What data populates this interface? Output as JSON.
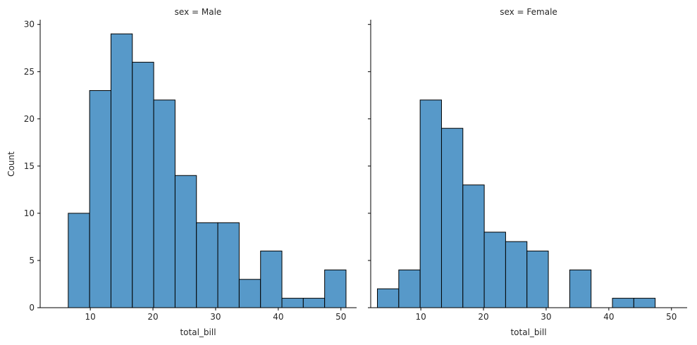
{
  "chart_data": [
    {
      "type": "bar",
      "subtype": "histogram",
      "title": "sex = Male",
      "xlabel": "total_bill",
      "ylabel": "Count",
      "xlim": [
        2.0,
        52.5
      ],
      "ylim": [
        0,
        30.5
      ],
      "xticks": [
        10,
        20,
        30,
        40,
        50
      ],
      "yticks": [
        0,
        5,
        10,
        15,
        20,
        25,
        30
      ],
      "bar_color": "#5799c9",
      "edge_color": "#000000",
      "bins": [
        {
          "x0": 3.07,
          "x1": 6.48,
          "count": 0
        },
        {
          "x0": 6.48,
          "x1": 9.89,
          "count": 10
        },
        {
          "x0": 9.89,
          "x1": 13.3,
          "count": 23
        },
        {
          "x0": 13.3,
          "x1": 16.71,
          "count": 29
        },
        {
          "x0": 16.71,
          "x1": 20.12,
          "count": 26
        },
        {
          "x0": 20.12,
          "x1": 23.53,
          "count": 22
        },
        {
          "x0": 23.53,
          "x1": 26.94,
          "count": 14
        },
        {
          "x0": 26.94,
          "x1": 30.35,
          "count": 9
        },
        {
          "x0": 30.35,
          "x1": 33.76,
          "count": 9
        },
        {
          "x0": 33.76,
          "x1": 37.17,
          "count": 3
        },
        {
          "x0": 37.17,
          "x1": 40.58,
          "count": 6
        },
        {
          "x0": 40.58,
          "x1": 43.99,
          "count": 1
        },
        {
          "x0": 43.99,
          "x1": 47.4,
          "count": 1
        },
        {
          "x0": 47.4,
          "x1": 50.81,
          "count": 4
        }
      ]
    },
    {
      "type": "bar",
      "subtype": "histogram",
      "title": "sex = Female",
      "xlabel": "total_bill",
      "ylabel": "",
      "xlim": [
        2.0,
        52.5
      ],
      "ylim": [
        0,
        30.5
      ],
      "xticks": [
        10,
        20,
        30,
        40,
        50
      ],
      "yticks": [
        0,
        5,
        10,
        15,
        20,
        25,
        30
      ],
      "bar_color": "#5799c9",
      "edge_color": "#000000",
      "bins": [
        {
          "x0": 3.07,
          "x1": 6.48,
          "count": 2
        },
        {
          "x0": 6.48,
          "x1": 9.89,
          "count": 4
        },
        {
          "x0": 9.89,
          "x1": 13.3,
          "count": 22
        },
        {
          "x0": 13.3,
          "x1": 16.71,
          "count": 19
        },
        {
          "x0": 16.71,
          "x1": 20.12,
          "count": 13
        },
        {
          "x0": 20.12,
          "x1": 23.53,
          "count": 8
        },
        {
          "x0": 23.53,
          "x1": 26.94,
          "count": 7
        },
        {
          "x0": 26.94,
          "x1": 30.35,
          "count": 6
        },
        {
          "x0": 30.35,
          "x1": 33.76,
          "count": 0
        },
        {
          "x0": 33.76,
          "x1": 37.17,
          "count": 4
        },
        {
          "x0": 37.17,
          "x1": 40.58,
          "count": 0
        },
        {
          "x0": 40.58,
          "x1": 43.99,
          "count": 1
        },
        {
          "x0": 43.99,
          "x1": 47.4,
          "count": 1
        },
        {
          "x0": 47.4,
          "x1": 50.81,
          "count": 0
        }
      ]
    }
  ]
}
